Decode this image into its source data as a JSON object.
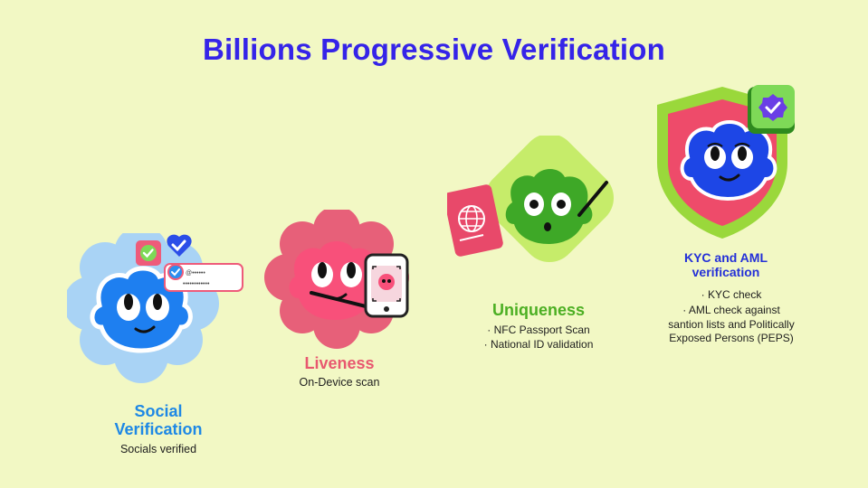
{
  "title": "Billions Progressive Verification",
  "steps": [
    {
      "title": "Social Verification",
      "subtitle": "Socials verified",
      "color": "#1e88e5",
      "card_line1": "@••••••",
      "card_line2": "••••••••••••"
    },
    {
      "title": "Liveness",
      "subtitle": "On-Device scan",
      "color": "#e8586f"
    },
    {
      "title": "Uniqueness",
      "bullets": [
        "NFC Passport Scan",
        "National ID validation"
      ],
      "color": "#4caf23"
    },
    {
      "title": "KYC and AML verification",
      "bullets": [
        "KYC check",
        "AML check against santion lists and Politically Exposed Persons (PEPS)"
      ],
      "color": "#2430d8"
    }
  ],
  "icons": [
    "social-blob-icon",
    "liveness-blob-icon",
    "uniqueness-blob-icon",
    "kyc-shield-icon",
    "check-badge-icon",
    "heart-check-icon",
    "phone-scan-icon",
    "passport-icon"
  ]
}
